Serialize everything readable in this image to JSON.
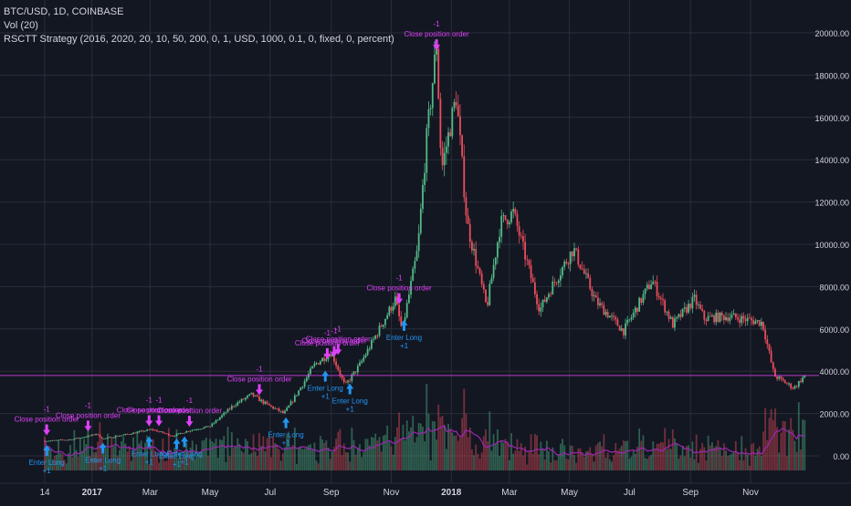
{
  "legend": {
    "symbol": "BTC/USD, 1D, COINBASE",
    "volume": "Vol (20)",
    "strategy": "RSCTT Strategy (2016, 2020, 20, 10, 50, 200, 0, 1, USD, 1000, 0.1, 0, fixed, 0, percent)"
  },
  "colors": {
    "background": "#131722",
    "grid": "#2a2e39",
    "up": "#53b987",
    "down": "#eb4d5c",
    "volume_ma": "#9c27b0",
    "price_line": "#e040fb",
    "entry": "#2196f3",
    "exit": "#e040fb",
    "axis_text": "#d1d4dc"
  },
  "chart_data": {
    "type": "candlestick",
    "x_tick_labels": [
      "14",
      "2017",
      "Mar",
      "May",
      "Jul",
      "Sep",
      "Nov",
      "2018",
      "Mar",
      "May",
      "Jul",
      "Sep",
      "Nov"
    ],
    "y_tick_labels": [
      "20000.00",
      "18000.00",
      "16000.00",
      "14000.00",
      "12000.00",
      "10000.00",
      "8000.00",
      "6000.00",
      "4000.00",
      "2000.00",
      "0.00"
    ],
    "price_ylim": [
      -800,
      20800
    ],
    "current_price": 3800,
    "price_path": [
      {
        "d": "2016-11-14",
        "p": 700
      },
      {
        "d": "2016-12-10",
        "p": 770
      },
      {
        "d": "2016-12-31",
        "p": 960
      },
      {
        "d": "2017-01-05",
        "p": 1050
      },
      {
        "d": "2017-01-12",
        "p": 800
      },
      {
        "d": "2017-02-01",
        "p": 980
      },
      {
        "d": "2017-03-03",
        "p": 1250
      },
      {
        "d": "2017-03-24",
        "p": 940
      },
      {
        "d": "2017-04-10",
        "p": 1200
      },
      {
        "d": "2017-05-01",
        "p": 1400
      },
      {
        "d": "2017-05-25",
        "p": 2400
      },
      {
        "d": "2017-06-12",
        "p": 2900
      },
      {
        "d": "2017-06-25",
        "p": 2500
      },
      {
        "d": "2017-07-15",
        "p": 2000
      },
      {
        "d": "2017-07-25",
        "p": 2700
      },
      {
        "d": "2017-08-15",
        "p": 4300
      },
      {
        "d": "2017-09-01",
        "p": 4900
      },
      {
        "d": "2017-09-15",
        "p": 3300
      },
      {
        "d": "2017-09-30",
        "p": 4300
      },
      {
        "d": "2017-10-20",
        "p": 6000
      },
      {
        "d": "2017-11-05",
        "p": 7400
      },
      {
        "d": "2017-11-12",
        "p": 5900
      },
      {
        "d": "2017-11-28",
        "p": 9800
      },
      {
        "d": "2017-12-07",
        "p": 15000
      },
      {
        "d": "2017-12-17",
        "p": 19500
      },
      {
        "d": "2017-12-22",
        "p": 13500
      },
      {
        "d": "2018-01-06",
        "p": 17000
      },
      {
        "d": "2018-01-17",
        "p": 11000
      },
      {
        "d": "2018-02-06",
        "p": 7000
      },
      {
        "d": "2018-02-20",
        "p": 11000
      },
      {
        "d": "2018-03-05",
        "p": 11500
      },
      {
        "d": "2018-04-01",
        "p": 6900
      },
      {
        "d": "2018-04-12",
        "p": 7900
      },
      {
        "d": "2018-05-05",
        "p": 9800
      },
      {
        "d": "2018-05-28",
        "p": 7300
      },
      {
        "d": "2018-06-25",
        "p": 5900
      },
      {
        "d": "2018-07-24",
        "p": 8300
      },
      {
        "d": "2018-08-14",
        "p": 6200
      },
      {
        "d": "2018-09-05",
        "p": 7400
      },
      {
        "d": "2018-09-15",
        "p": 6500
      },
      {
        "d": "2018-10-10",
        "p": 6600
      },
      {
        "d": "2018-11-13",
        "p": 6300
      },
      {
        "d": "2018-11-25",
        "p": 3800
      },
      {
        "d": "2018-12-15",
        "p": 3200
      },
      {
        "d": "2018-12-26",
        "p": 3800
      }
    ],
    "trades": [
      {
        "type": "entry",
        "date": "2016-11-16",
        "price": 690,
        "label": "Enter Long",
        "qty": "+1"
      },
      {
        "type": "exit",
        "date": "2016-11-16",
        "price": 800,
        "label": "Close position order",
        "qty": "-1"
      },
      {
        "type": "exit",
        "date": "2016-12-28",
        "price": 980,
        "label": "Close position order",
        "qty": "-1"
      },
      {
        "type": "entry",
        "date": "2017-01-12",
        "price": 800,
        "label": "Enter Long",
        "qty": "+1"
      },
      {
        "type": "exit",
        "date": "2017-02-28",
        "price": 1230,
        "label": "Close position order",
        "qty": "-1"
      },
      {
        "type": "entry",
        "date": "2017-02-28",
        "price": 1100,
        "label": "Enter Long",
        "qty": "+1"
      },
      {
        "type": "exit",
        "date": "2017-03-10",
        "price": 1230,
        "label": "Close position order",
        "qty": "-1"
      },
      {
        "type": "entry",
        "date": "2017-03-28",
        "price": 1000,
        "label": "Enter Long",
        "qty": "+1"
      },
      {
        "type": "entry",
        "date": "2017-04-05",
        "price": 1100,
        "label": "Enter Long",
        "qty": "+1"
      },
      {
        "type": "exit",
        "date": "2017-04-10",
        "price": 1200,
        "label": "Close position order",
        "qty": "-1"
      },
      {
        "type": "exit",
        "date": "2017-06-20",
        "price": 2700,
        "label": "Close position order",
        "qty": "-1"
      },
      {
        "type": "entry",
        "date": "2017-07-17",
        "price": 2000,
        "label": "Enter Long",
        "qty": "+1"
      },
      {
        "type": "exit",
        "date": "2017-08-28",
        "price": 4400,
        "label": "Close position order",
        "qty": "-1"
      },
      {
        "type": "entry",
        "date": "2017-08-26",
        "price": 4200,
        "label": "Enter Long",
        "qty": "+1"
      },
      {
        "type": "exit",
        "date": "2017-09-04",
        "price": 4500,
        "label": "Close position order",
        "qty": "-1"
      },
      {
        "type": "exit",
        "date": "2017-09-08",
        "price": 4600,
        "label": "Close position order",
        "qty": "-1"
      },
      {
        "type": "entry",
        "date": "2017-09-20",
        "price": 3600,
        "label": "Enter Long",
        "qty": "+1"
      },
      {
        "type": "exit",
        "date": "2017-11-09",
        "price": 7000,
        "label": "Close position order",
        "qty": "-1"
      },
      {
        "type": "entry",
        "date": "2017-11-14",
        "price": 6600,
        "label": "Enter Long",
        "qty": "+1"
      },
      {
        "type": "exit",
        "date": "2017-12-17",
        "price": 19000,
        "label": "Close position order",
        "qty": "-1"
      }
    ]
  }
}
